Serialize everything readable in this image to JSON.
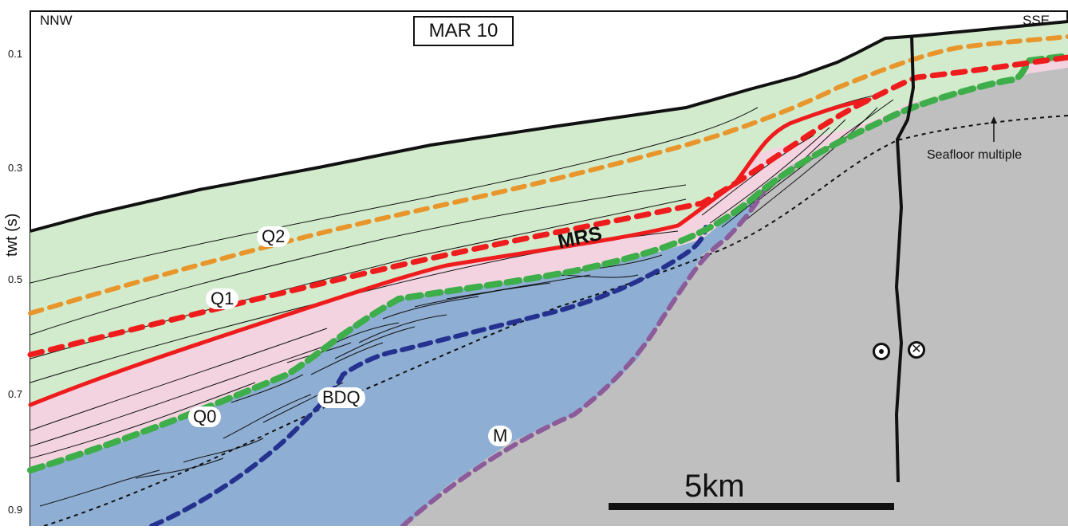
{
  "section": {
    "title": "MAR 10",
    "left_direction": "NNW",
    "right_direction": "SSE",
    "axis_title": "twt (s)",
    "ticks": [
      "0.1",
      "0.3",
      "0.5",
      "0.7",
      "0.9"
    ]
  },
  "units": {
    "q2": "Q2",
    "q1": "Q1",
    "q0": "Q0",
    "bdq": "BDQ",
    "m": "M",
    "mrs": "MRS"
  },
  "annotations": {
    "seafloor_multiple": "Seafloor multiple",
    "scale_bar": "5km"
  },
  "colors": {
    "unit_q_green": "#d3ebcd",
    "unit_pink": "#f3d3e0",
    "unit_blue": "#8eaed3",
    "basement_gray": "#bfbfbf",
    "q2_orange": "#e8962b",
    "q1_red": "#ee1c1c",
    "mrs_red": "#ee1c1c",
    "q0_green": "#3dae49",
    "bdq_navy": "#24318f",
    "m_purple": "#8c5b99"
  }
}
